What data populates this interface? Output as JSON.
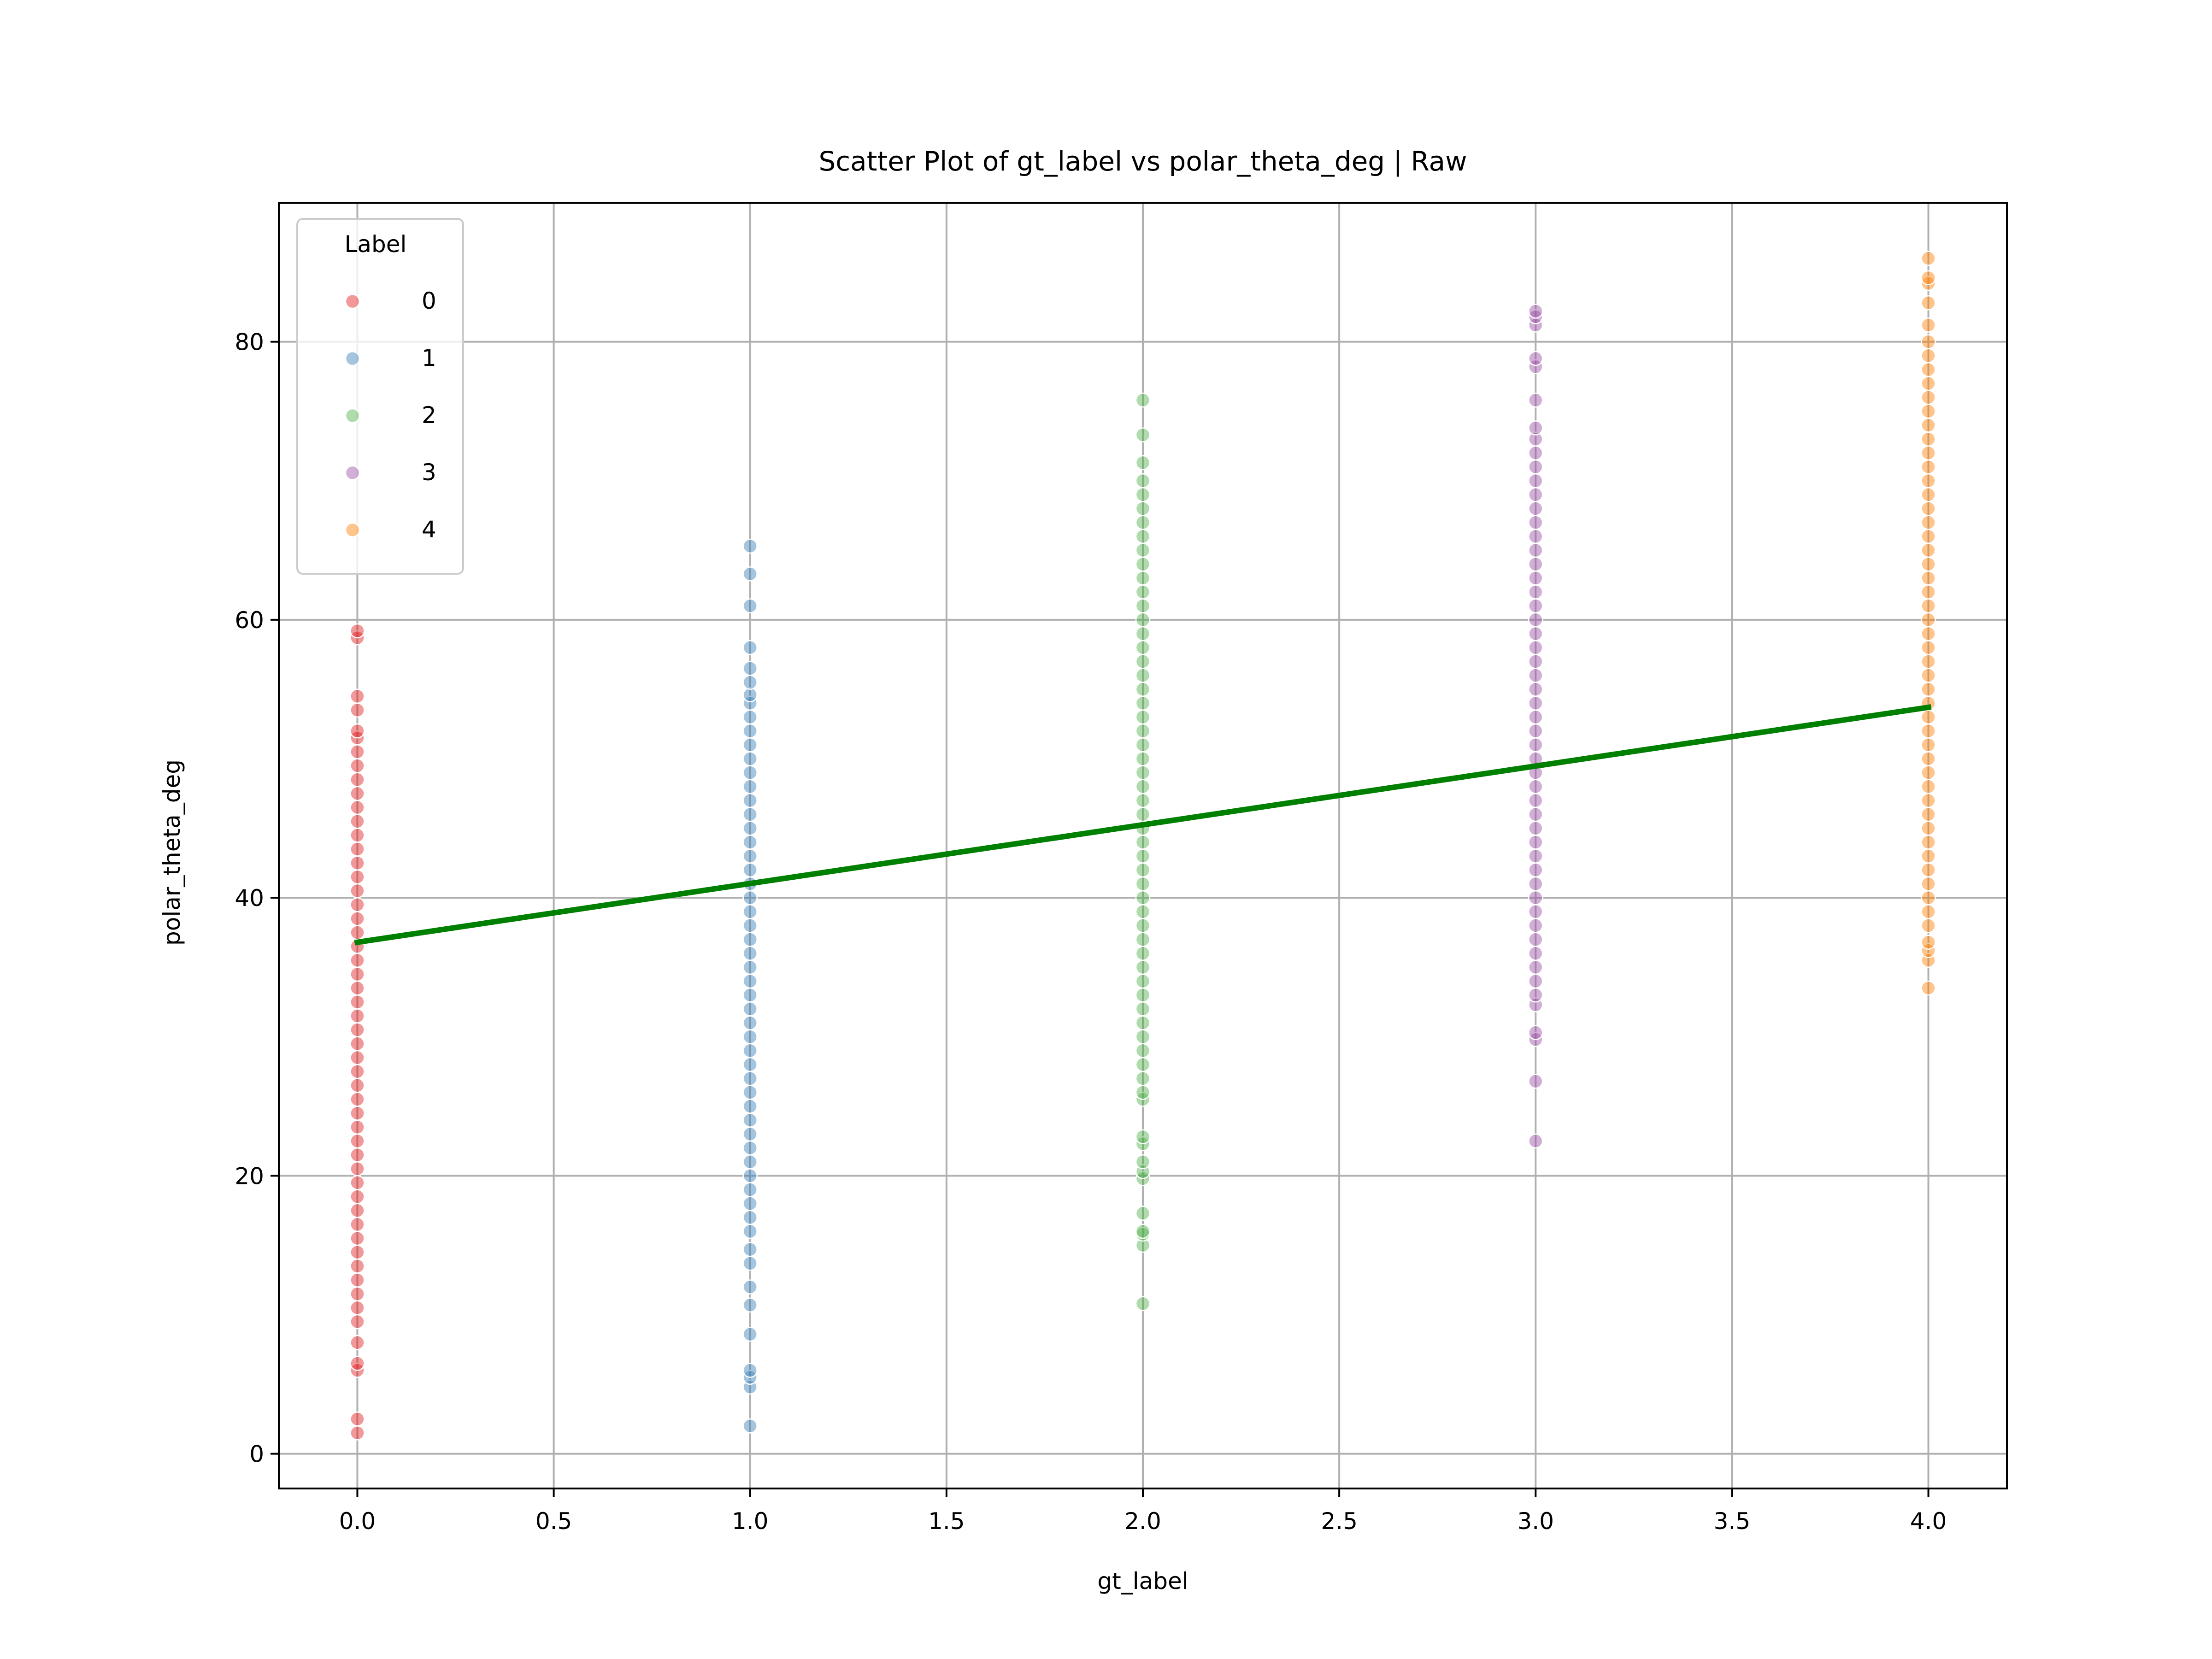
{
  "chart_data": {
    "type": "scatter",
    "title": "Scatter Plot of gt_label vs polar_theta_deg | Raw",
    "xlabel": "gt_label",
    "ylabel": "polar_theta_deg",
    "xlim": [
      -0.2,
      4.2
    ],
    "ylim": [
      -2.5,
      90
    ],
    "x_ticks": [
      0.0,
      0.5,
      1.0,
      1.5,
      2.0,
      2.5,
      3.0,
      3.5,
      4.0
    ],
    "x_tick_labels": [
      "0.0",
      "0.5",
      "1.0",
      "1.5",
      "2.0",
      "2.5",
      "3.0",
      "3.5",
      "4.0"
    ],
    "y_ticks": [
      0,
      20,
      40,
      60,
      80
    ],
    "y_tick_labels": [
      "0",
      "20",
      "40",
      "60",
      "80"
    ],
    "grid": true,
    "legend": {
      "title": "Label",
      "placement": "top-left"
    },
    "series": [
      {
        "name": "0",
        "color": "#e41a1c",
        "x": 0,
        "y": [
          1.5,
          2.5,
          6,
          6.5,
          8,
          9.5,
          10.5,
          11.5,
          12.5,
          13.5,
          14.5,
          15.5,
          16.5,
          17.5,
          18.5,
          19.5,
          20.5,
          21.5,
          22.5,
          23.5,
          24.5,
          25.5,
          26.5,
          27.5,
          28.5,
          29.5,
          30.5,
          31.5,
          32.5,
          33.5,
          34.5,
          35.5,
          36.5,
          37.5,
          38.5,
          39.5,
          40.5,
          41.5,
          42.5,
          43.5,
          44.5,
          45.5,
          46.5,
          47.5,
          48.5,
          49.5,
          50.5,
          51.5,
          52,
          53.5,
          54.5,
          58.7,
          59.2
        ]
      },
      {
        "name": "1",
        "color": "#377eb8",
        "x": 1,
        "y": [
          2,
          4.8,
          5.5,
          6,
          8.6,
          10.7,
          12,
          13.7,
          14.7,
          16,
          17,
          18,
          19,
          20,
          21,
          22,
          23,
          24,
          25,
          26,
          27,
          28,
          29,
          30,
          31,
          32,
          33,
          34,
          35,
          36,
          37,
          38,
          39,
          40,
          41,
          42,
          43,
          44,
          45,
          46,
          47,
          48,
          49,
          50,
          51,
          52,
          53,
          54,
          54.6,
          55.5,
          56.5,
          58,
          61,
          63.3,
          65.3
        ]
      },
      {
        "name": "2",
        "color": "#4daf4a",
        "x": 2,
        "y": [
          10.8,
          15,
          15.8,
          16,
          17.3,
          19.8,
          20.3,
          21,
          22.3,
          22.8,
          25.5,
          26,
          27,
          28,
          29,
          30,
          31,
          32,
          33,
          34,
          35,
          36,
          37,
          38,
          39,
          40,
          41,
          42,
          43,
          44,
          45,
          46,
          47,
          48,
          49,
          50,
          51,
          52,
          53,
          54,
          55,
          56,
          57,
          58,
          59,
          60,
          61,
          62,
          63,
          64,
          65,
          66,
          67,
          68,
          69,
          70,
          71.3,
          73.3,
          75.8
        ]
      },
      {
        "name": "3",
        "color": "#984ea3",
        "x": 3,
        "y": [
          22.5,
          26.8,
          29.8,
          30.3,
          32.3,
          33,
          34,
          35,
          36,
          37,
          38,
          39,
          40,
          41,
          42,
          43,
          44,
          45,
          46,
          47,
          48,
          49,
          50,
          51,
          52,
          53,
          54,
          55,
          56,
          57,
          58,
          59,
          60,
          61,
          62,
          63,
          64,
          65,
          66,
          67,
          68,
          69,
          70,
          71,
          72,
          73,
          73.8,
          75.8,
          78.2,
          78.8,
          81.2,
          81.8,
          82.2
        ]
      },
      {
        "name": "4",
        "color": "#ff7f00",
        "x": 4,
        "y": [
          33.5,
          35.5,
          36.2,
          36.8,
          38,
          39,
          40,
          41,
          42,
          43,
          44,
          45,
          46,
          47,
          48,
          49,
          50,
          51,
          52,
          53,
          54,
          55,
          56,
          57,
          58,
          59,
          60,
          61,
          62,
          63,
          64,
          65,
          66,
          67,
          68,
          69,
          70,
          71,
          72,
          73,
          74,
          75,
          76,
          77,
          78,
          79,
          80,
          81.2,
          82.8,
          84.2,
          84.6,
          86
        ]
      }
    ],
    "trend_line": {
      "color": "#008000",
      "x": [
        0,
        4
      ],
      "y": [
        36.8,
        53.7
      ]
    }
  }
}
